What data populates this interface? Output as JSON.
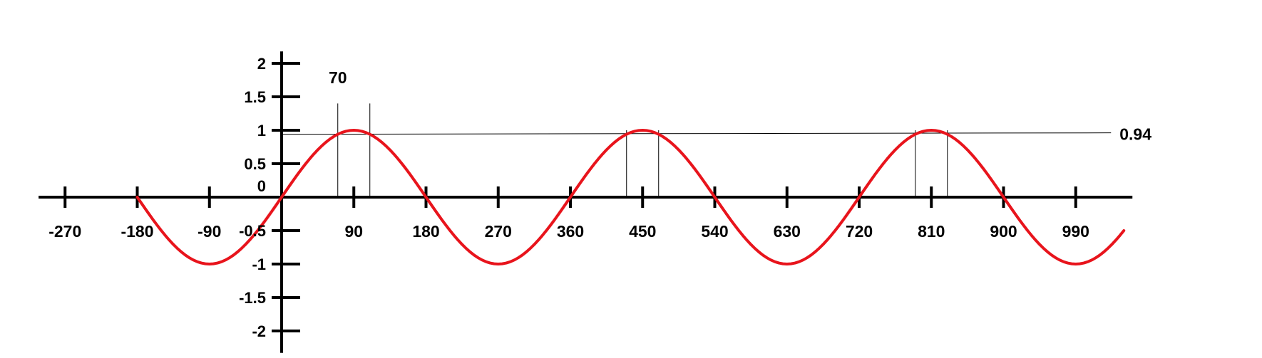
{
  "chart_data": {
    "type": "line",
    "title": "",
    "xlabel": "",
    "ylabel": "",
    "x_ticks": [
      -270,
      -180,
      -90,
      0,
      90,
      180,
      270,
      360,
      450,
      540,
      630,
      720,
      810,
      900,
      990
    ],
    "x_tick_labels": [
      "-270",
      "-180",
      "-90",
      "",
      "90",
      "180",
      "270",
      "360",
      "450",
      "540",
      "630",
      "720",
      "810",
      "900",
      "990"
    ],
    "y_ticks": [
      2,
      1.5,
      1,
      0.5,
      0,
      -0.5,
      -1,
      -1.5,
      -2
    ],
    "y_tick_labels": [
      "2",
      "1.5",
      "1",
      "0.5",
      "0",
      "-0.5",
      "-1",
      "-1.5",
      "-2"
    ],
    "xlim": [
      -303,
      1050
    ],
    "ylim": [
      -2.2,
      2.2
    ],
    "grid": false,
    "colors": {
      "curve": "#e8141c",
      "axes": "#000000",
      "guides": "#000000"
    },
    "series": [
      {
        "function": "sin(x)",
        "x_start": -180,
        "x_end": 1050,
        "step": 5
      }
    ],
    "reference_line": {
      "y": 0.94,
      "label": "0.94"
    },
    "vertical_markers": [
      {
        "x": 70,
        "y_top": 1.4
      },
      {
        "x": 110,
        "y_top": 1.4
      },
      {
        "x": 430,
        "y_top": 1.0
      },
      {
        "x": 470,
        "y_top": 1.0
      },
      {
        "x": 790,
        "y_top": 1.0
      },
      {
        "x": 830,
        "y_top": 1.0
      }
    ],
    "annotations": [
      {
        "text": "70",
        "x": 70,
        "y": 1.7
      }
    ]
  }
}
